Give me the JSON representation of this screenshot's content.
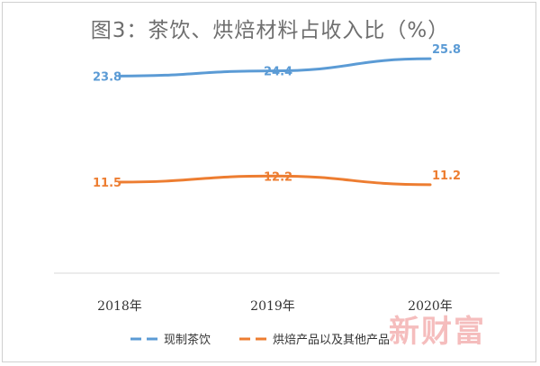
{
  "chart_data": {
    "type": "line",
    "title": "图3：茶饮、烘焙材料占收入比（%）",
    "categories": [
      "2018年",
      "2019年",
      "2020年"
    ],
    "ylim": [
      0,
      30
    ],
    "grid": false,
    "legend_position": "bottom",
    "series": [
      {
        "name": "现制茶饮",
        "values": [
          23.8,
          24.4,
          25.8
        ],
        "color": "#5b9bd5",
        "labels": [
          "23.8",
          "24.4",
          "25.8"
        ]
      },
      {
        "name": "烘焙产品以及其他产品",
        "values": [
          11.5,
          12.2,
          11.2
        ],
        "color": "#ed7d31",
        "labels": [
          "11.5",
          "12.2",
          "11.2"
        ]
      }
    ]
  },
  "watermark": "新财富"
}
